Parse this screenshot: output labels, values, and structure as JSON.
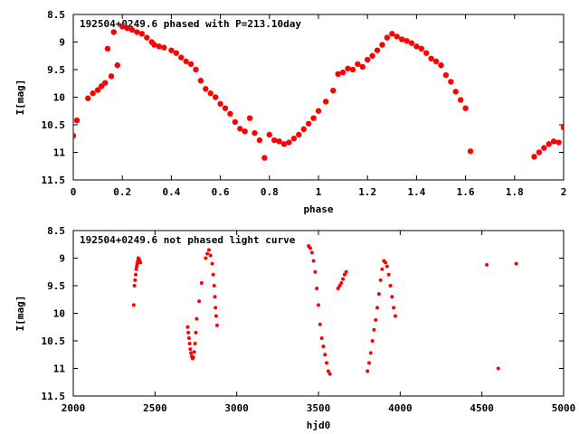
{
  "chart_data": [
    {
      "type": "scatter",
      "title": "192504+0249.6 phased with P=213.10day",
      "xlabel": "phase",
      "ylabel": "I[mag]",
      "xlim": [
        0,
        2
      ],
      "ylim": [
        11.5,
        8.5
      ],
      "y_inverted": true,
      "x_ticks": [
        "0",
        "0.2",
        "0.4",
        "0.6",
        "0.8",
        "1",
        "1.2",
        "1.4",
        "1.6",
        "1.8",
        "2"
      ],
      "y_ticks": [
        "8.5",
        "9",
        "9.5",
        "10",
        "10.5",
        "11",
        "11.5"
      ],
      "marker": "filled-circle",
      "color": "#ff0000",
      "grid": false,
      "series": [
        {
          "x": [
            0.0,
            0.015,
            0.06,
            0.08,
            0.1,
            0.115,
            0.13,
            0.14,
            0.155,
            0.165,
            0.18,
            0.2,
            0.22,
            0.24,
            0.26,
            0.28,
            0.3,
            0.32,
            0.33,
            0.35,
            0.37,
            0.4,
            0.42,
            0.44,
            0.46,
            0.48,
            0.5,
            0.52,
            0.54,
            0.56,
            0.58,
            0.6,
            0.62,
            0.64,
            0.66,
            0.68,
            0.7,
            0.72,
            0.74,
            0.76,
            0.78,
            0.8,
            0.82,
            0.84,
            0.86,
            0.88,
            0.9,
            0.92,
            0.94,
            0.96,
            0.98,
            1.0,
            1.03,
            1.06,
            1.08,
            1.1,
            1.12,
            1.14,
            1.16,
            1.18,
            1.2,
            1.22,
            1.24,
            1.26,
            1.28,
            1.3,
            1.32,
            1.34,
            1.36,
            1.38,
            1.4,
            1.42,
            1.44,
            1.46,
            1.48,
            1.5,
            1.52,
            1.54,
            1.56,
            1.58,
            1.6,
            1.62,
            1.88,
            1.9,
            1.92,
            1.94,
            1.96,
            1.98,
            2.0
          ],
          "y": [
            10.7,
            10.42,
            10.02,
            9.93,
            9.87,
            9.8,
            9.74,
            9.12,
            9.62,
            8.82,
            9.42,
            8.72,
            8.75,
            8.78,
            8.82,
            8.85,
            8.92,
            9.0,
            9.05,
            9.08,
            9.1,
            9.15,
            9.2,
            9.28,
            9.35,
            9.4,
            9.5,
            9.7,
            9.85,
            9.93,
            10.0,
            10.12,
            10.2,
            10.3,
            10.45,
            10.57,
            10.62,
            10.38,
            10.65,
            10.78,
            11.1,
            10.68,
            10.78,
            10.8,
            10.85,
            10.82,
            10.75,
            10.68,
            10.58,
            10.48,
            10.38,
            10.25,
            10.08,
            9.88,
            9.58,
            9.55,
            9.48,
            9.5,
            9.4,
            9.45,
            9.32,
            9.25,
            9.15,
            9.05,
            8.92,
            8.85,
            8.9,
            8.95,
            8.98,
            9.02,
            9.08,
            9.12,
            9.2,
            9.3,
            9.35,
            9.42,
            9.6,
            9.72,
            9.9,
            10.05,
            10.2,
            10.98,
            11.08,
            11.0,
            10.92,
            10.85,
            10.8,
            10.82,
            10.55
          ]
        }
      ]
    },
    {
      "type": "scatter",
      "title": "192504+0249.6 not phased light curve",
      "xlabel": "hjd0",
      "ylabel": "I[mag]",
      "xlim": [
        2000,
        5000
      ],
      "ylim": [
        11.5,
        8.5
      ],
      "y_inverted": true,
      "x_ticks": [
        "2000",
        "2500",
        "3000",
        "3500",
        "4000",
        "4500",
        "5000"
      ],
      "y_ticks": [
        "8.5",
        "9",
        "9.5",
        "10",
        "10.5",
        "11",
        "11.5"
      ],
      "marker": "filled-circle",
      "color": "#ff0000",
      "grid": false,
      "series": [
        {
          "x": [
            2370,
            2374,
            2378,
            2382,
            2385,
            2388,
            2391,
            2395,
            2398,
            2402,
            2406,
            2410,
            2700,
            2704,
            2708,
            2712,
            2716,
            2720,
            2725,
            2730,
            2735,
            2740,
            2745,
            2750,
            2755,
            2770,
            2785,
            2810,
            2820,
            2830,
            2840,
            2850,
            2856,
            2862,
            2866,
            2870,
            2874,
            2880,
            3440,
            3450,
            3460,
            3470,
            3480,
            3490,
            3500,
            3510,
            3520,
            3530,
            3540,
            3550,
            3560,
            3570,
            3620,
            3630,
            3640,
            3650,
            3660,
            3670,
            3800,
            3810,
            3820,
            3830,
            3840,
            3850,
            3860,
            3870,
            3880,
            3890,
            3900,
            3910,
            3920,
            3930,
            3940,
            3950,
            3960,
            3970,
            4530,
            4600,
            4710
          ],
          "y": [
            9.85,
            9.5,
            9.4,
            9.3,
            9.2,
            9.15,
            9.1,
            9.05,
            9.0,
            9.02,
            9.05,
            9.08,
            10.25,
            10.35,
            10.45,
            10.55,
            10.65,
            10.72,
            10.78,
            10.82,
            10.8,
            10.7,
            10.55,
            10.35,
            10.1,
            9.78,
            9.45,
            9.0,
            8.92,
            8.85,
            8.95,
            9.1,
            9.3,
            9.5,
            9.7,
            9.9,
            10.05,
            10.22,
            8.78,
            8.82,
            8.9,
            9.05,
            9.25,
            9.55,
            9.85,
            10.2,
            10.45,
            10.6,
            10.75,
            10.9,
            11.05,
            11.1,
            9.55,
            9.5,
            9.45,
            9.38,
            9.3,
            9.25,
            11.05,
            10.9,
            10.72,
            10.5,
            10.3,
            10.12,
            9.9,
            9.65,
            9.4,
            9.2,
            9.05,
            9.08,
            9.15,
            9.3,
            9.5,
            9.7,
            9.9,
            10.05,
            9.12,
            11.0,
            9.1
          ]
        }
      ]
    }
  ]
}
